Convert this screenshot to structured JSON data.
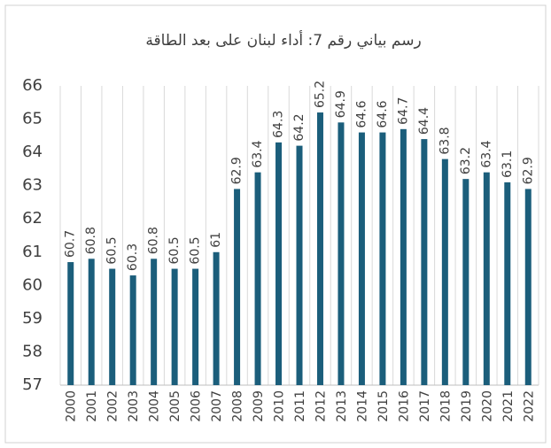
{
  "chart_data": {
    "type": "bar",
    "title": "رسم بياني رقم 7: أداء لبنان على بعد الطاقة",
    "categories": [
      "2000",
      "2001",
      "2002",
      "2003",
      "2004",
      "2005",
      "2006",
      "2007",
      "2008",
      "2009",
      "2010",
      "2011",
      "2012",
      "2013",
      "2014",
      "2015",
      "2016",
      "2017",
      "2018",
      "2019",
      "2020",
      "2021",
      "2022"
    ],
    "values": [
      60.7,
      60.8,
      60.5,
      60.3,
      60.8,
      60.5,
      60.5,
      61,
      62.9,
      63.4,
      64.3,
      64.2,
      65.2,
      64.9,
      64.6,
      64.6,
      64.7,
      64.4,
      63.8,
      63.2,
      63.4,
      63.1,
      62.9
    ],
    "color": "#1b5e7b",
    "ylim": [
      57,
      66
    ],
    "yticks": [
      57,
      58,
      59,
      60,
      61,
      62,
      63,
      64,
      65,
      66
    ],
    "grid": true,
    "data_labels": true
  }
}
